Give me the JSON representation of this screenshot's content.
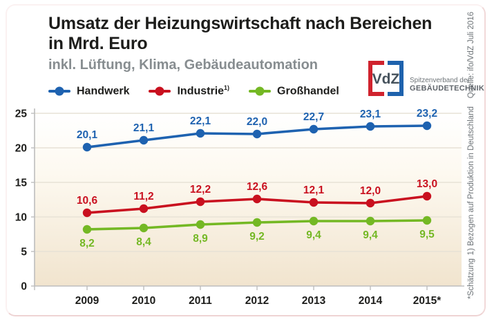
{
  "header": {
    "title_line1": "Umsatz der Heizungswirtschaft nach Bereichen",
    "title_line2": "in Mrd. Euro",
    "subtitle": "inkl. Lüftung, Klima, Gebäudeautomation"
  },
  "logo": {
    "text": "VdZ",
    "tagline_line1": "Spitzenverband der",
    "tagline_line2": "GEBÄUDETECHNIK",
    "colors": {
      "red": "#d0232e",
      "blue": "#1e62ad",
      "text": "#46525c"
    }
  },
  "legend": [
    {
      "label": "Handwerk",
      "sup": "",
      "color": "#1e62b0"
    },
    {
      "label": "Industrie",
      "sup": "1)",
      "color": "#c9101f"
    },
    {
      "label": "Großhandel",
      "sup": "",
      "color": "#74b824"
    }
  ],
  "side_notes": {
    "source": "Quelle: ifo/VdZ Juli 2016",
    "footnote1": "1) Bezogen auf Produktion in Deutschland",
    "footnote2": "*Schätzung"
  },
  "chart_data": {
    "type": "line",
    "title": "Umsatz der Heizungswirtschaft nach Bereichen in Mrd. Euro",
    "subtitle": "inkl. Lüftung, Klima, Gebäudeautomation",
    "categories": [
      "2009",
      "2010",
      "2011",
      "2012",
      "2013",
      "2014",
      "2015*"
    ],
    "series": [
      {
        "name": "Handwerk",
        "color": "#1e62b0",
        "values": [
          20.1,
          21.1,
          22.1,
          22.0,
          22.7,
          23.1,
          23.2
        ],
        "label_position": "above"
      },
      {
        "name": "Industrie 1)",
        "color": "#c9101f",
        "values": [
          10.6,
          11.2,
          12.2,
          12.6,
          12.1,
          12.0,
          13.0
        ],
        "label_position": "above"
      },
      {
        "name": "Großhandel",
        "color": "#74b824",
        "values": [
          8.2,
          8.4,
          8.9,
          9.2,
          9.4,
          9.4,
          9.5
        ],
        "label_position": "below"
      }
    ],
    "yticks": [
      0,
      5,
      10,
      15,
      20,
      25
    ],
    "ylim": [
      0,
      25
    ],
    "grid": true,
    "legend_position": "top",
    "colors": {
      "axis": "#bdbdbd",
      "gridline": "#e7e2d6",
      "tick_label": "#1d1d1b",
      "plot_bg_top": "#ffffff",
      "plot_bg_mid": "#fdf9f0",
      "plot_bg_bottom": "#f1e4ce"
    }
  }
}
